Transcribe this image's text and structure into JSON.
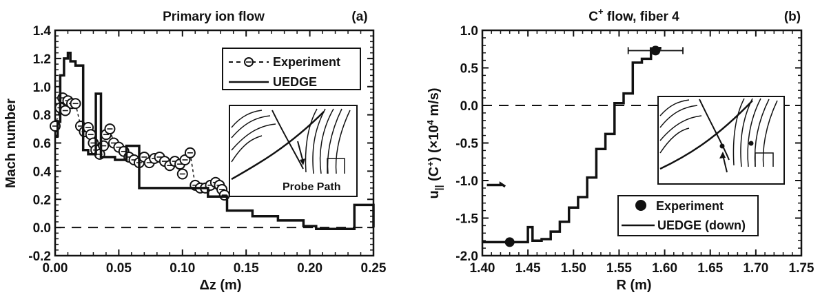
{
  "chart_data": [
    {
      "type": "line",
      "panel": "(a)",
      "title": "Primary ion flow",
      "xlabel": "Δz (m)",
      "ylabel": "Mach number",
      "xlim": [
        0,
        0.25
      ],
      "ylim": [
        -0.2,
        1.4
      ],
      "xticks": [
        "0.00",
        "0.05",
        "0.10",
        "0.15",
        "0.20",
        "0.25"
      ],
      "yticks": [
        "-0.2",
        "0.0",
        "0.2",
        "0.4",
        "0.6",
        "0.8",
        "1.0",
        "1.2",
        "1.4"
      ],
      "legend_position": "top-right",
      "inset_label": "Probe Path",
      "zero_line": true,
      "series": [
        {
          "name": "Experiment",
          "style": "dashed-circles",
          "x": [
            0.0,
            0.004,
            0.006,
            0.008,
            0.01,
            0.013,
            0.016,
            0.02,
            0.023,
            0.026,
            0.028,
            0.03,
            0.032,
            0.035,
            0.038,
            0.04,
            0.043,
            0.046,
            0.05,
            0.054,
            0.058,
            0.062,
            0.066,
            0.07,
            0.074,
            0.078,
            0.082,
            0.086,
            0.09,
            0.094,
            0.098,
            0.1,
            0.102,
            0.106,
            0.11,
            0.114,
            0.118,
            0.122,
            0.126,
            0.129,
            0.131,
            0.133
          ],
          "y": [
            0.72,
            0.85,
            0.92,
            0.83,
            0.9,
            0.88,
            0.88,
            0.72,
            0.68,
            0.71,
            0.66,
            0.6,
            0.55,
            0.52,
            0.58,
            0.66,
            0.7,
            0.6,
            0.57,
            0.54,
            0.5,
            0.48,
            0.46,
            0.5,
            0.46,
            0.49,
            0.5,
            0.47,
            0.44,
            0.47,
            0.45,
            0.38,
            0.48,
            0.53,
            0.3,
            0.28,
            0.28,
            0.3,
            0.32,
            0.3,
            0.27,
            0.23
          ]
        },
        {
          "name": "UEDGE",
          "style": "solid-step",
          "x": [
            0.0,
            0.002,
            0.002,
            0.004,
            0.004,
            0.007,
            0.007,
            0.01,
            0.01,
            0.012,
            0.012,
            0.016,
            0.016,
            0.022,
            0.022,
            0.026,
            0.026,
            0.032,
            0.032,
            0.036,
            0.036,
            0.04,
            0.04,
            0.047,
            0.047,
            0.056,
            0.056,
            0.066,
            0.066,
            0.08,
            0.08,
            0.095,
            0.095,
            0.11,
            0.11,
            0.12,
            0.12,
            0.135,
            0.135,
            0.155,
            0.155,
            0.175,
            0.175,
            0.195,
            0.195,
            0.205,
            0.205,
            0.235,
            0.235,
            0.24,
            0.24,
            0.25,
            0.25
          ],
          "y": [
            0.65,
            0.65,
            0.75,
            0.75,
            1.08,
            1.08,
            1.2,
            1.2,
            1.24,
            1.24,
            1.18,
            1.18,
            1.15,
            1.15,
            0.55,
            0.55,
            0.52,
            0.52,
            0.95,
            0.95,
            0.5,
            0.5,
            0.5,
            0.5,
            0.48,
            0.48,
            0.58,
            0.58,
            0.28,
            0.28,
            0.28,
            0.28,
            0.28,
            0.28,
            0.28,
            0.28,
            0.22,
            0.22,
            0.12,
            0.12,
            0.08,
            0.08,
            0.05,
            0.05,
            0.01,
            0.01,
            -0.01,
            -0.01,
            0.16,
            0.16,
            0.16,
            0.16,
            0.0
          ]
        }
      ]
    },
    {
      "type": "line",
      "panel": "(b)",
      "title_main": "C",
      "title_sup": "+",
      "title_rest": "flow, fiber 4",
      "xlabel": "R (m)",
      "ylabel": "u|| (C+) (×10^4 m/s)",
      "ylabel_parts": {
        "u": "u",
        "sub": "||",
        "mid": " (C",
        "sup1": "+",
        "mid2": ") (×10",
        "sup2": "4",
        "end": " m/s)"
      },
      "xlim": [
        1.4,
        1.75
      ],
      "ylim": [
        -2.0,
        1.0
      ],
      "xticks": [
        "1.40",
        "1.45",
        "1.50",
        "1.55",
        "1.60",
        "1.65",
        "1.70",
        "1.75"
      ],
      "yticks": [
        "-2.0",
        "-1.5",
        "-1.0",
        "-0.5",
        "0.0",
        "0.5",
        "1.0"
      ],
      "legend_position": "bottom-right",
      "zero_line": true,
      "series": [
        {
          "name": "Experiment",
          "style": "filled-circles",
          "x": [
            1.43,
            1.59
          ],
          "y": [
            -1.82,
            0.73
          ],
          "xerr": [
            0,
            0.03
          ]
        },
        {
          "name": "UEDGE (down)",
          "style": "solid-step",
          "x": [
            1.4,
            1.44,
            1.44,
            1.45,
            1.45,
            1.455,
            1.455,
            1.465,
            1.465,
            1.475,
            1.475,
            1.485,
            1.485,
            1.495,
            1.495,
            1.505,
            1.505,
            1.515,
            1.515,
            1.525,
            1.525,
            1.535,
            1.535,
            1.545,
            1.545,
            1.555,
            1.555,
            1.565,
            1.565,
            1.575,
            1.575,
            1.585,
            1.585,
            1.595,
            1.595
          ],
          "y": [
            -1.82,
            -1.82,
            -1.82,
            -1.82,
            -1.62,
            -1.62,
            -1.8,
            -1.8,
            -1.78,
            -1.78,
            -1.68,
            -1.68,
            -1.55,
            -1.55,
            -1.36,
            -1.36,
            -1.22,
            -1.22,
            -0.96,
            -0.96,
            -0.58,
            -0.58,
            -0.38,
            -0.38,
            0.03,
            0.03,
            0.16,
            0.16,
            0.57,
            0.57,
            0.62,
            0.62,
            0.76,
            0.76,
            0.78
          ]
        },
        {
          "name": "",
          "style": "solid-step",
          "x": [
            1.405,
            1.42,
            1.42,
            1.425
          ],
          "y": [
            -1.06,
            -1.06,
            -1.04,
            -1.08
          ]
        }
      ]
    }
  ],
  "legend_a": {
    "experiment": "Experiment",
    "uedge": "UEDGE"
  },
  "legend_b": {
    "experiment": "Experiment",
    "uedge": "UEDGE (down)"
  },
  "titles": {
    "a_title": "Primary ion flow",
    "a_panel": "(a)",
    "b_panel": "(b)",
    "b_title_c": "C",
    "b_title_sup": "+",
    "b_title_rest": " flow, fiber 4"
  },
  "labels": {
    "a_xlabel": "Δz (m)",
    "a_ylabel": "Mach number",
    "b_xlabel": "R (m)",
    "a_inset": "Probe Path"
  }
}
